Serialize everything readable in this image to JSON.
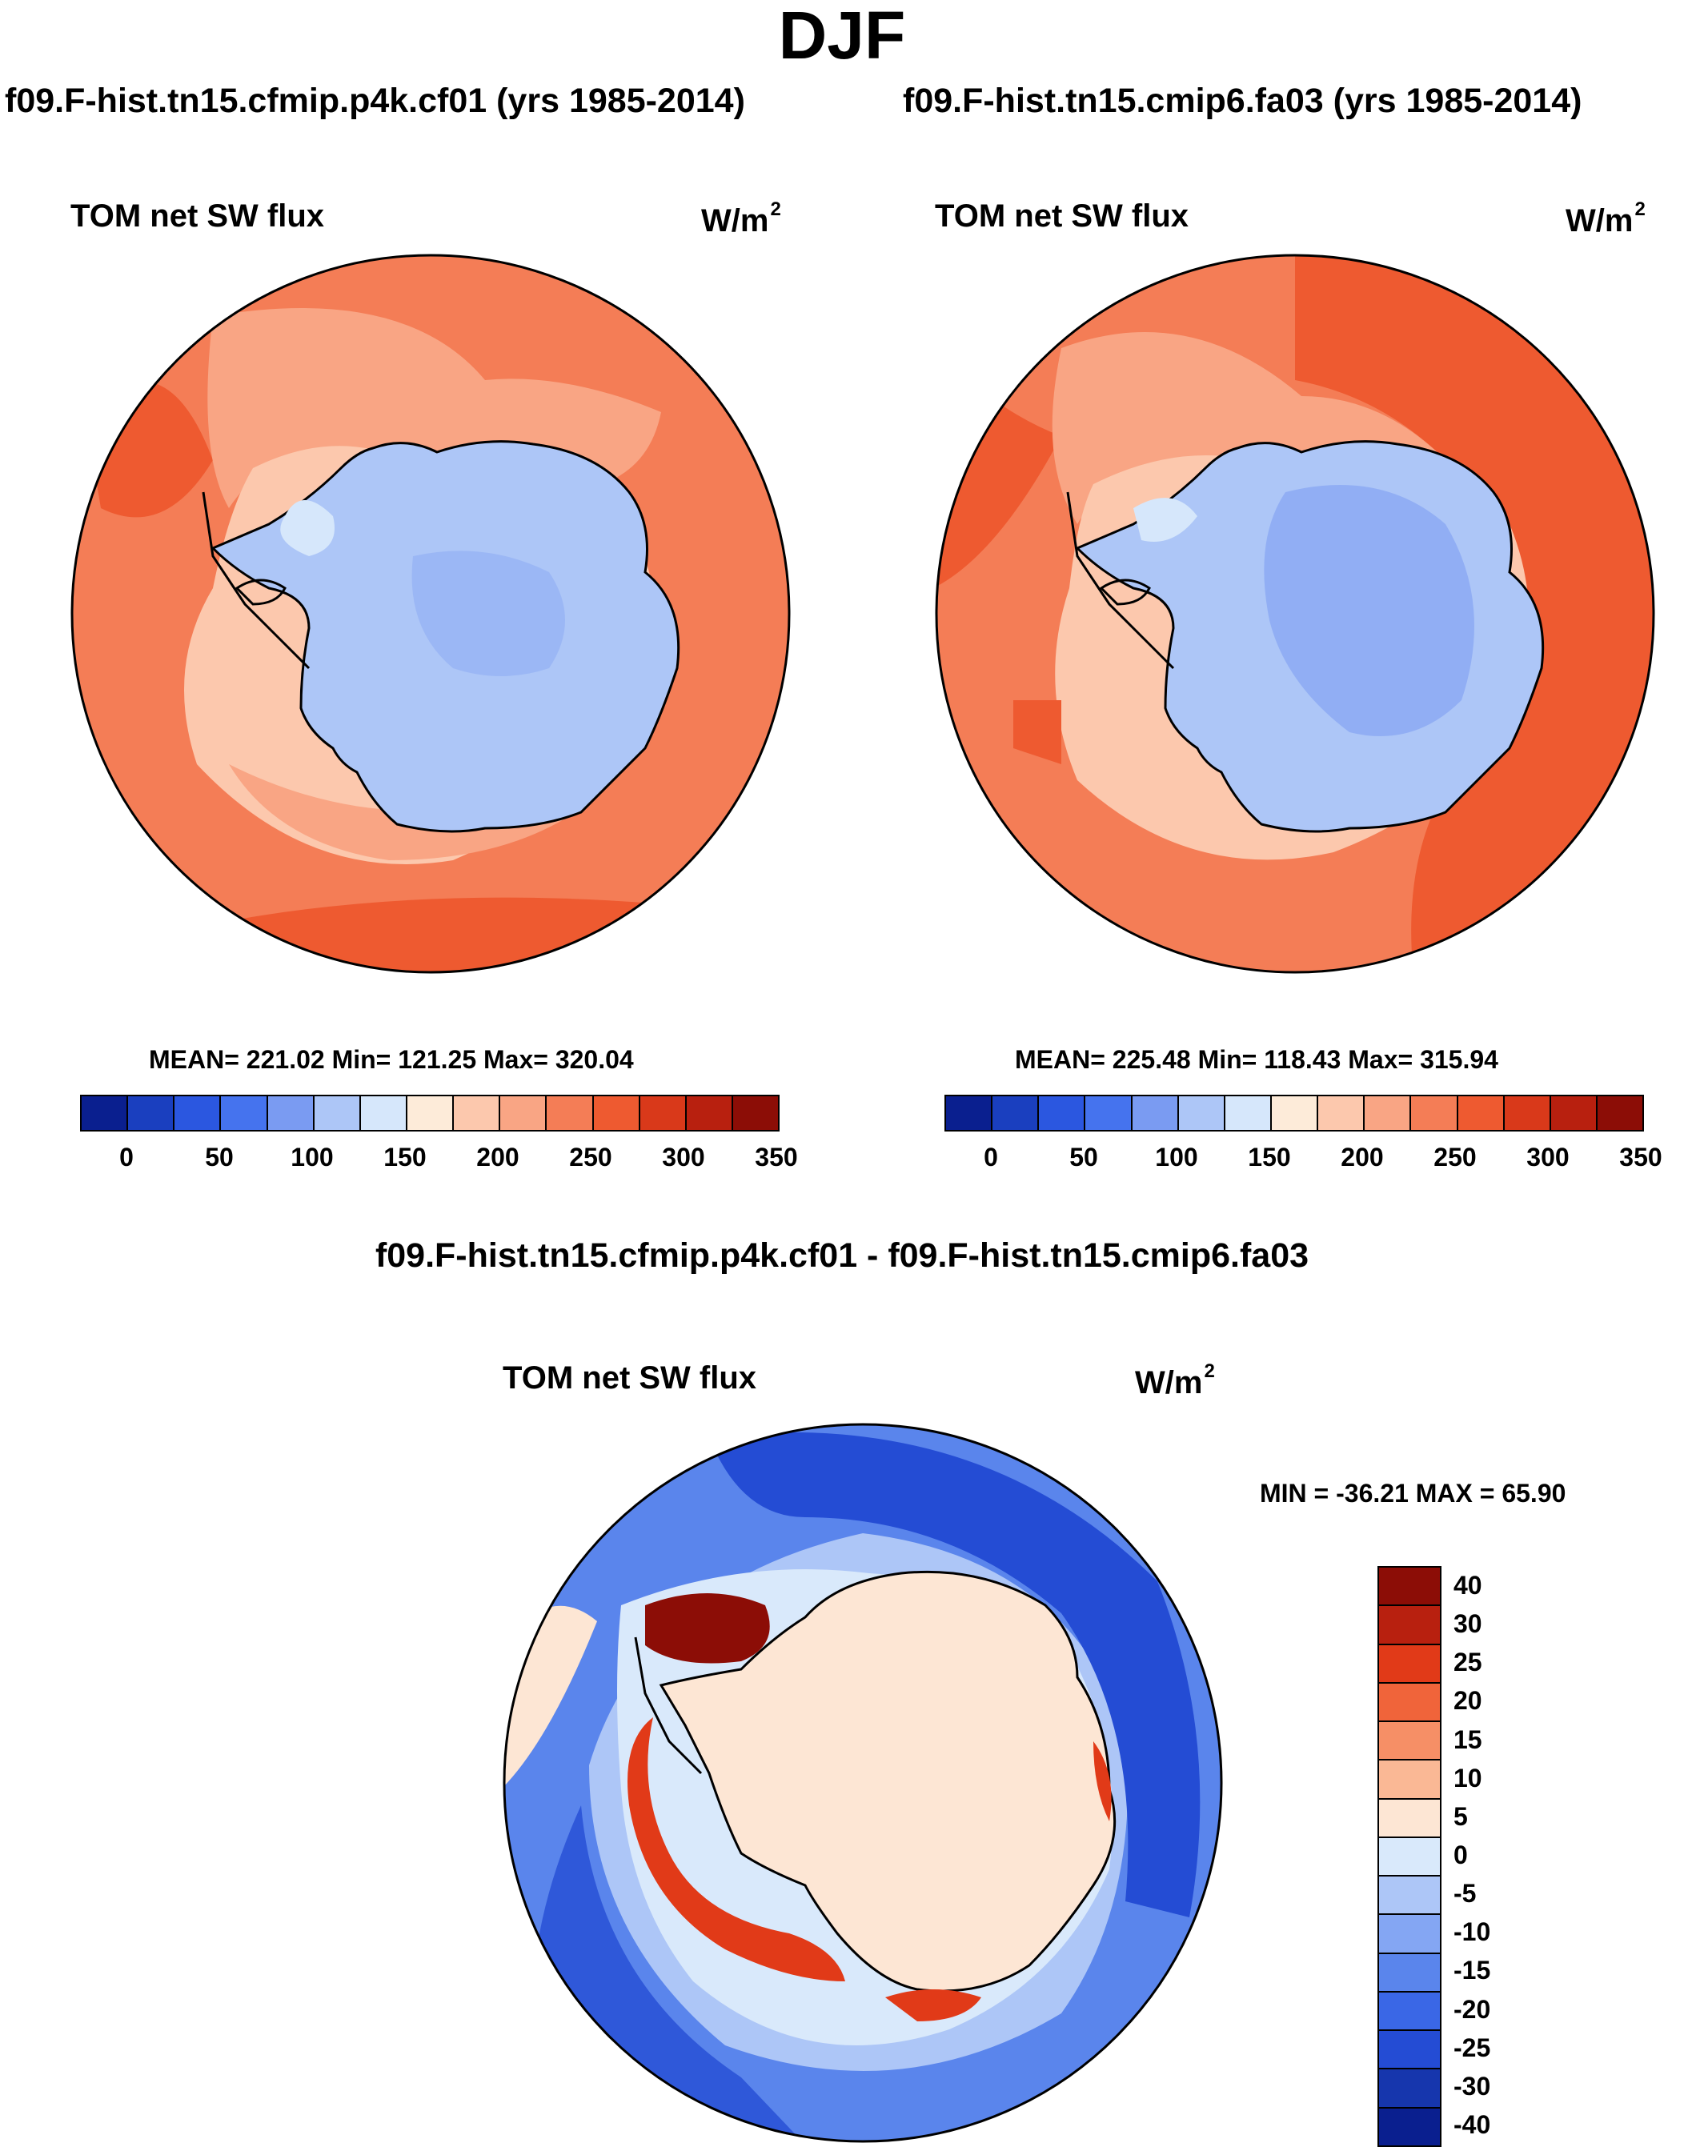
{
  "season": "DJF",
  "case_left": "f09.F-hist.tn15.cfmip.p4k.cf01 (yrs 1985-2014)",
  "case_right": "f09.F-hist.tn15.cmip6.fa03 (yrs 1985-2014)",
  "variable_title": "TOM net SW flux",
  "units_base": "W/m",
  "units_exp": "2",
  "panel_left_stats": "MEAN= 221.02  Min= 121.25  Max= 320.04",
  "panel_right_stats": "MEAN= 225.48  Min= 118.43  Max= 315.94",
  "diff_title": "f09.F-hist.tn15.cfmip.p4k.cf01 - f09.F-hist.tn15.cmip6.fa03",
  "diff_stats": "MIN = -36.21 MAX =  65.90",
  "colorbar_abs": {
    "colors": [
      "#0a1f8f",
      "#1a3fbf",
      "#2b57e0",
      "#4573ee",
      "#7a9bf2",
      "#adc6f7",
      "#d6e7fb",
      "#fdebd9",
      "#fcc8ad",
      "#f9a584",
      "#f47d56",
      "#ee5a30",
      "#d9391a",
      "#b8200f",
      "#8c0d06"
    ],
    "labels": [
      "0",
      "50",
      "100",
      "150",
      "200",
      "250",
      "300",
      "350"
    ]
  },
  "colorbar_diff": {
    "colors": [
      "#8c0d06",
      "#b8200f",
      "#e13a18",
      "#f0643a",
      "#f68f66",
      "#fab895",
      "#fde6d4",
      "#d9e9fb",
      "#adc6f7",
      "#84a6f3",
      "#5a85ec",
      "#3a67e6",
      "#244cd4",
      "#1636ad",
      "#0a1f8f"
    ],
    "labels": [
      "40",
      "30",
      "25",
      "20",
      "15",
      "10",
      "5",
      "0",
      "-5",
      "-10",
      "-15",
      "-20",
      "-25",
      "-30",
      "-40"
    ]
  },
  "map_colors": {
    "ocean_abs": "#f47d56",
    "ocean_abs_dark": "#ee5a30",
    "ocean_abs_light": "#f9a584",
    "ocean_abs_pale": "#fcc8ad",
    "ice_abs": "#adc6f7",
    "ice_abs_dark": "#7a9bf2",
    "ice_abs_pale": "#d6e7fb",
    "diff_outer": "#244cd4",
    "diff_mid": "#5a85ec",
    "diff_light": "#adc6f7",
    "diff_pale": "#d9e9fb",
    "diff_land": "#fde6d4",
    "diff_red": "#e13a18",
    "diff_darkred": "#8c0d06"
  }
}
